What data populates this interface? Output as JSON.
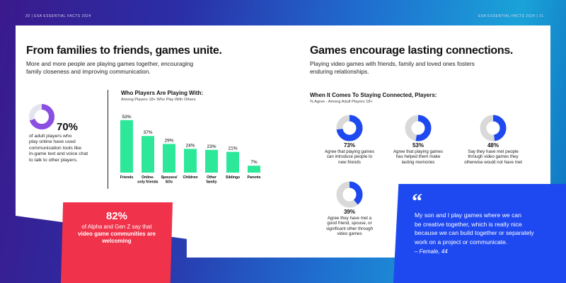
{
  "header": {
    "left": "20   |   ESA ESSENTIAL FACTS 2024",
    "right": "ESA ESSENTIAL FACTS 2024   |   21"
  },
  "left_page": {
    "title": "From families to friends, games unite.",
    "subtitle_lines": [
      "More and more people are playing games together, encouraging",
      "family closeness and improving communication."
    ],
    "comm_stat": {
      "value": "70%",
      "fraction": 0.7,
      "desc_lines": [
        "of adult players who",
        "play online have used",
        "communication tools like",
        "in-game text and voice chat",
        "to talk to other players."
      ]
    },
    "callout": {
      "value": "82%",
      "line1": "of Alpha and Gen Z say that",
      "line2": "video game communities are",
      "line3": "welcoming"
    }
  },
  "chart_data": {
    "type": "bar",
    "title": "Who Players Are Playing With:",
    "subtitle": "Among Players 18+ Who Play With Others",
    "categories": [
      "Friends",
      "Online-only friends",
      "Spouses/ SOs",
      "Children",
      "Other family",
      "Siblings",
      "Parents"
    ],
    "category_lines": [
      [
        "Friends"
      ],
      [
        "Online-",
        "only friends"
      ],
      [
        "Spouses/",
        "SOs"
      ],
      [
        "Children"
      ],
      [
        "Other",
        "family"
      ],
      [
        "Siblings"
      ],
      [
        "Parents"
      ]
    ],
    "values": [
      53,
      37,
      29,
      24,
      23,
      21,
      7
    ],
    "value_labels": [
      "53%",
      "37%",
      "29%",
      "24%",
      "23%",
      "21%",
      "7%"
    ],
    "ylim": [
      0,
      60
    ],
    "bar_color": "#2ee89a",
    "grid": false
  },
  "right_page": {
    "title": "Games encourage lasting connections.",
    "subtitle_lines": [
      "Playing video games with friends, family and loved ones fosters",
      "enduring relationships."
    ],
    "section_title": "When It Comes To Staying Connected, Players:",
    "section_sub": "% Agree - Among Adult Players 18+",
    "donuts": [
      {
        "value": "73%",
        "fraction": 0.73,
        "lines": [
          "Agree that playing games",
          "can introduce people to",
          "new friends"
        ]
      },
      {
        "value": "53%",
        "fraction": 0.53,
        "lines": [
          "Agree that playing games",
          "has helped them make",
          "lasting memories"
        ]
      },
      {
        "value": "48%",
        "fraction": 0.48,
        "lines": [
          "Say they have met people",
          "through video games they",
          "otherwise would not have met"
        ]
      },
      {
        "value": "39%",
        "fraction": 0.39,
        "lines": [
          "Agree they have met a",
          "good friend, spouse, or",
          "significant other through",
          "video games"
        ]
      }
    ],
    "quote": {
      "mark": "“",
      "lines": [
        "My son and I play games where we can",
        "be creative together, which is really nice",
        "because we can build together or separately",
        "work on a project or communicate."
      ],
      "attribution": "– Female, 44"
    }
  },
  "colors": {
    "accent_purple": "#8a4fe0",
    "donut_blue": "#1f49f0",
    "donut_gray": "#d9d9d9",
    "callout_red": "#f0324a",
    "quote_blue": "#1f49f0"
  }
}
